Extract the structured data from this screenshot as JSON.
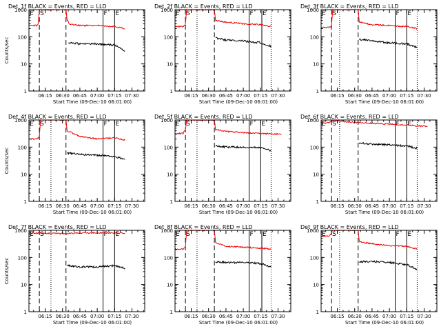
{
  "figure": {
    "background": "#ffffff",
    "event_color": "#000000",
    "lld_color": "#ee0000"
  },
  "chart_data": [
    {
      "type": "line",
      "title": "Det_1f BLACK = Events, RED = LLD",
      "ylabel": "Counts/sec",
      "xlabel": "Start Time (09-Dec-10 06:01:00)",
      "x_tick_labels": [
        "06:15",
        "06:30",
        "06:45",
        "07:00",
        "07:15",
        "07:30"
      ],
      "y_tick_labels": [
        "1",
        "10",
        "100",
        "1000"
      ],
      "xlim": [
        "06:01",
        "07:41"
      ],
      "ylim": [
        1,
        1000
      ],
      "yscale": "log",
      "markers": [
        {
          "label": "E",
          "time": "06:01",
          "style": "solid"
        },
        {
          "label": "S",
          "time": "06:10",
          "style": "dashed"
        },
        {
          "label": "",
          "time": "06:33",
          "style": "dashed"
        },
        {
          "label": "F",
          "time": "07:05",
          "style": "solid"
        },
        {
          "label": "E",
          "time": "07:15",
          "style": "solid"
        }
      ],
      "series": [
        {
          "name": "LLD",
          "color": "#ee0000",
          "x": [
            "06:01",
            "06:08",
            "06:09",
            "06:10",
            "06:33",
            "06:34",
            "06:36",
            "06:45",
            "07:00",
            "07:15",
            "07:24"
          ],
          "values": [
            260,
            260,
            300,
            1000,
            1000,
            420,
            300,
            260,
            260,
            240,
            200
          ]
        },
        {
          "name": "Events",
          "color": "#000000",
          "x": [
            "06:35",
            "06:45",
            "07:00",
            "07:10",
            "07:15",
            "07:24"
          ],
          "values": [
            60,
            55,
            55,
            50,
            50,
            30
          ]
        }
      ]
    },
    {
      "type": "line",
      "title": "Det_2f BLACK = Events, RED = LLD",
      "ylabel": "",
      "xlabel": "Start Time (09-Dec-10 06:01:00)",
      "x_tick_labels": [
        "06:15",
        "06:30",
        "06:45",
        "07:00",
        "07:15",
        "07:30"
      ],
      "y_tick_labels": [
        "1",
        "10",
        "100",
        "1000"
      ],
      "xlim": [
        "06:01",
        "07:41"
      ],
      "ylim": [
        1,
        1000
      ],
      "yscale": "log",
      "markers": [
        {
          "label": "E",
          "time": "06:01",
          "style": "solid"
        },
        {
          "label": "S",
          "time": "06:10",
          "style": "dashed"
        },
        {
          "label": "",
          "time": "06:20",
          "style": "dotted"
        },
        {
          "label": "",
          "time": "06:35",
          "style": "dashed"
        },
        {
          "label": "F",
          "time": "07:05",
          "style": "solid"
        },
        {
          "label": "E",
          "time": "07:16",
          "style": "solid"
        },
        {
          "label": "",
          "time": "07:24",
          "style": "dotted"
        }
      ],
      "series": [
        {
          "name": "LLD",
          "color": "#ee0000",
          "x": [
            "06:01",
            "06:08",
            "06:10",
            "06:11",
            "06:35",
            "06:36",
            "06:45",
            "07:00",
            "07:15",
            "07:24"
          ],
          "values": [
            240,
            240,
            300,
            1000,
            1000,
            400,
            350,
            300,
            280,
            240
          ]
        },
        {
          "name": "Events",
          "color": "#000000",
          "x": [
            "06:36",
            "06:45",
            "07:00",
            "07:15",
            "07:24"
          ],
          "values": [
            90,
            75,
            70,
            60,
            45
          ]
        }
      ]
    },
    {
      "type": "line",
      "title": "Det_3f BLACK = Events, RED = LLD",
      "ylabel": "",
      "xlabel": "Start Time (09-Dec-10 06:01:00)",
      "x_tick_labels": [
        "06:15",
        "06:30",
        "06:45",
        "07:00",
        "07:15",
        "07:30"
      ],
      "y_tick_labels": [
        "1",
        "10",
        "100",
        "1000"
      ],
      "xlim": [
        "06:01",
        "07:41"
      ],
      "ylim": [
        1,
        1000
      ],
      "yscale": "log",
      "markers": [
        {
          "label": "E",
          "time": "06:01",
          "style": "solid"
        },
        {
          "label": "S",
          "time": "06:10",
          "style": "dashed"
        },
        {
          "label": "",
          "time": "06:17",
          "style": "dotted"
        },
        {
          "label": "",
          "time": "06:33",
          "style": "dashed"
        },
        {
          "label": "F",
          "time": "07:05",
          "style": "solid"
        },
        {
          "label": "E",
          "time": "07:15",
          "style": "solid"
        },
        {
          "label": "",
          "time": "07:24",
          "style": "dotted"
        }
      ],
      "series": [
        {
          "name": "LLD",
          "color": "#ee0000",
          "x": [
            "06:01",
            "06:08",
            "06:10",
            "06:11",
            "06:33",
            "06:34",
            "06:45",
            "07:00",
            "07:15",
            "07:24"
          ],
          "values": [
            220,
            220,
            260,
            1000,
            1000,
            350,
            280,
            260,
            240,
            200
          ]
        },
        {
          "name": "Events",
          "color": "#000000",
          "x": [
            "06:34",
            "06:45",
            "07:00",
            "07:15",
            "07:24"
          ],
          "values": [
            80,
            70,
            60,
            55,
            40
          ]
        }
      ]
    },
    {
      "type": "line",
      "title": "Det_4f BLACK = Events, RED = LLD",
      "ylabel": "Counts/sec",
      "xlabel": "Start Time (09-Dec-10 06:01:00)",
      "x_tick_labels": [
        "06:15",
        "06:30",
        "06:45",
        "07:00",
        "07:15",
        "07:30"
      ],
      "y_tick_labels": [
        "1",
        "10",
        "100",
        "1000"
      ],
      "xlim": [
        "06:01",
        "07:41"
      ],
      "ylim": [
        1,
        1000
      ],
      "yscale": "log",
      "markers": [
        {
          "label": "E",
          "time": "06:01",
          "style": "solid"
        },
        {
          "label": "S",
          "time": "06:10",
          "style": "dashed"
        },
        {
          "label": "",
          "time": "06:20",
          "style": "dotted"
        },
        {
          "label": "",
          "time": "06:33",
          "style": "dashed"
        },
        {
          "label": "F",
          "time": "07:05",
          "style": "solid"
        },
        {
          "label": "E",
          "time": "07:15",
          "style": "solid"
        }
      ],
      "series": [
        {
          "name": "LLD",
          "color": "#ee0000",
          "x": [
            "06:01",
            "06:08",
            "06:10",
            "06:11",
            "06:33",
            "06:34",
            "06:45",
            "07:00",
            "07:15",
            "07:24"
          ],
          "values": [
            200,
            200,
            260,
            1000,
            1000,
            400,
            250,
            200,
            220,
            180
          ]
        },
        {
          "name": "Events",
          "color": "#000000",
          "x": [
            "06:34",
            "06:45",
            "07:00",
            "07:15",
            "07:24"
          ],
          "values": [
            60,
            55,
            50,
            45,
            35
          ]
        }
      ]
    },
    {
      "type": "line",
      "title": "Det_5f BLACK = Events, RED = LLD",
      "ylabel": "",
      "xlabel": "Start Time (09-Dec-10 06:01:00)",
      "x_tick_labels": [
        "06:15",
        "06:30",
        "06:45",
        "07:00",
        "07:15",
        "07:30"
      ],
      "y_tick_labels": [
        "1",
        "10",
        "100",
        "1000"
      ],
      "xlim": [
        "06:01",
        "07:41"
      ],
      "ylim": [
        1,
        1000
      ],
      "yscale": "log",
      "markers": [
        {
          "label": "E",
          "time": "06:01",
          "style": "solid"
        },
        {
          "label": "S",
          "time": "06:10",
          "style": "dashed"
        },
        {
          "label": "",
          "time": "06:20",
          "style": "dotted"
        },
        {
          "label": "",
          "time": "06:35",
          "style": "dashed"
        },
        {
          "label": "F",
          "time": "07:05",
          "style": "solid"
        },
        {
          "label": "E",
          "time": "07:15",
          "style": "solid"
        },
        {
          "label": "",
          "time": "07:24",
          "style": "dotted"
        }
      ],
      "series": [
        {
          "name": "LLD",
          "color": "#ee0000",
          "x": [
            "06:01",
            "06:08",
            "06:10",
            "06:11",
            "06:35",
            "06:36",
            "06:45",
            "07:00",
            "07:15",
            "07:33"
          ],
          "values": [
            320,
            320,
            450,
            1000,
            1000,
            450,
            380,
            340,
            320,
            300
          ]
        },
        {
          "name": "Events",
          "color": "#000000",
          "x": [
            "06:36",
            "06:45",
            "07:00",
            "07:15",
            "07:24"
          ],
          "values": [
            110,
            100,
            100,
            95,
            75
          ]
        }
      ]
    },
    {
      "type": "line",
      "title": "Det_6f BLACK = Events, RED = LLD",
      "ylabel": "",
      "xlabel": "Start Time (09-Dec-10 06:01:00)",
      "x_tick_labels": [
        "06:15",
        "06:30",
        "06:45",
        "07:00",
        "07:15",
        "07:30"
      ],
      "y_tick_labels": [
        "1",
        "10",
        "100",
        "1000"
      ],
      "xlim": [
        "06:01",
        "07:41"
      ],
      "ylim": [
        1,
        1000
      ],
      "yscale": "log",
      "markers": [
        {
          "label": "E",
          "time": "06:01",
          "style": "solid"
        },
        {
          "label": "S",
          "time": "06:10",
          "style": "dashed"
        },
        {
          "label": "",
          "time": "06:17",
          "style": "dotted"
        },
        {
          "label": "",
          "time": "06:33",
          "style": "dashed"
        },
        {
          "label": "F",
          "time": "07:05",
          "style": "solid"
        },
        {
          "label": "E",
          "time": "07:15",
          "style": "solid"
        },
        {
          "label": "",
          "time": "07:24",
          "style": "dotted"
        }
      ],
      "series": [
        {
          "name": "LLD",
          "color": "#ee0000",
          "x": [
            "06:01",
            "06:08",
            "06:10",
            "06:33",
            "06:45",
            "07:00",
            "07:15",
            "07:33"
          ],
          "values": [
            780,
            780,
            950,
            800,
            760,
            700,
            650,
            580
          ]
        },
        {
          "name": "Events",
          "color": "#000000",
          "x": [
            "06:34",
            "06:45",
            "07:00",
            "07:15",
            "07:24"
          ],
          "values": [
            140,
            130,
            120,
            110,
            90
          ]
        }
      ]
    },
    {
      "type": "line",
      "title": "Det_7f BLACK = Events, RED = LLD",
      "ylabel": "Counts/sec",
      "xlabel": "Start Time (09-Dec-10 06:01:00)",
      "x_tick_labels": [
        "06:15",
        "06:30",
        "06:45",
        "07:00",
        "07:15",
        "07:30"
      ],
      "y_tick_labels": [
        "1",
        "10",
        "100",
        "1000"
      ],
      "xlim": [
        "06:01",
        "07:41"
      ],
      "ylim": [
        1,
        1000
      ],
      "yscale": "log",
      "markers": [
        {
          "label": "E",
          "time": "06:01",
          "style": "solid"
        },
        {
          "label": "S",
          "time": "06:10",
          "style": "dashed"
        },
        {
          "label": "",
          "time": "06:20",
          "style": "dotted"
        },
        {
          "label": "",
          "time": "06:33",
          "style": "dashed"
        },
        {
          "label": "F",
          "time": "07:05",
          "style": "solid"
        },
        {
          "label": "E",
          "time": "07:15",
          "style": "solid"
        }
      ],
      "series": [
        {
          "name": "LLD",
          "color": "#ee0000",
          "x": [
            "06:01",
            "06:10",
            "06:30",
            "06:45",
            "07:00",
            "07:15",
            "07:24"
          ],
          "values": [
            780,
            800,
            750,
            800,
            820,
            800,
            760
          ]
        },
        {
          "name": "Events",
          "color": "#000000",
          "x": [
            "06:34",
            "06:45",
            "07:00",
            "07:15",
            "07:24"
          ],
          "values": [
            50,
            45,
            45,
            50,
            40
          ]
        }
      ]
    },
    {
      "type": "line",
      "title": "Det_8f BLACK = Events, RED = LLD",
      "ylabel": "",
      "xlabel": "Start Time (09-Dec-10 06:01:00)",
      "x_tick_labels": [
        "06:15",
        "06:30",
        "06:45",
        "07:00",
        "07:15",
        "07:30"
      ],
      "y_tick_labels": [
        "1",
        "10",
        "100",
        "1000"
      ],
      "xlim": [
        "06:01",
        "07:41"
      ],
      "ylim": [
        1,
        1000
      ],
      "yscale": "log",
      "markers": [
        {
          "label": "E",
          "time": "06:01",
          "style": "solid"
        },
        {
          "label": "S",
          "time": "06:10",
          "style": "dashed"
        },
        {
          "label": "",
          "time": "06:20",
          "style": "dotted"
        },
        {
          "label": "",
          "time": "06:35",
          "style": "dashed"
        },
        {
          "label": "F",
          "time": "07:05",
          "style": "solid"
        },
        {
          "label": "E",
          "time": "07:16",
          "style": "solid"
        },
        {
          "label": "",
          "time": "07:24",
          "style": "dotted"
        }
      ],
      "series": [
        {
          "name": "LLD",
          "color": "#ee0000",
          "x": [
            "06:01",
            "06:08",
            "06:10",
            "06:11",
            "06:35",
            "06:36",
            "06:45",
            "07:00",
            "07:15",
            "07:24"
          ],
          "values": [
            200,
            200,
            260,
            1000,
            1000,
            350,
            260,
            240,
            220,
            200
          ]
        },
        {
          "name": "Events",
          "color": "#000000",
          "x": [
            "06:36",
            "06:45",
            "07:00",
            "07:15",
            "07:24"
          ],
          "values": [
            70,
            65,
            65,
            60,
            45
          ]
        }
      ]
    },
    {
      "type": "line",
      "title": "Det_9f BLACK = Events, RED = LLD",
      "ylabel": "",
      "xlabel": "Start Time (09-Dec-10 06:01:00)",
      "x_tick_labels": [
        "06:15",
        "06:30",
        "06:45",
        "07:00",
        "07:15",
        "07:30"
      ],
      "y_tick_labels": [
        "1",
        "10",
        "100",
        "1000"
      ],
      "xlim": [
        "06:01",
        "07:41"
      ],
      "ylim": [
        1,
        1000
      ],
      "yscale": "log",
      "markers": [
        {
          "label": "E",
          "time": "06:01",
          "style": "solid"
        },
        {
          "label": "S",
          "time": "06:10",
          "style": "dashed"
        },
        {
          "label": "",
          "time": "06:17",
          "style": "dotted"
        },
        {
          "label": "",
          "time": "06:33",
          "style": "dashed"
        },
        {
          "label": "F",
          "time": "07:05",
          "style": "solid"
        },
        {
          "label": "E",
          "time": "07:15",
          "style": "solid"
        },
        {
          "label": "",
          "time": "07:24",
          "style": "dotted"
        }
      ],
      "series": [
        {
          "name": "LLD",
          "color": "#ee0000",
          "x": [
            "06:01",
            "06:08",
            "06:10",
            "06:11",
            "06:33",
            "06:34",
            "06:45",
            "07:00",
            "07:15",
            "07:24"
          ],
          "values": [
            600,
            600,
            800,
            1000,
            1000,
            380,
            320,
            270,
            260,
            200
          ]
        },
        {
          "name": "Events",
          "color": "#000000",
          "x": [
            "06:34",
            "06:45",
            "07:00",
            "07:15",
            "07:24"
          ],
          "values": [
            70,
            70,
            65,
            55,
            35
          ]
        }
      ]
    }
  ]
}
